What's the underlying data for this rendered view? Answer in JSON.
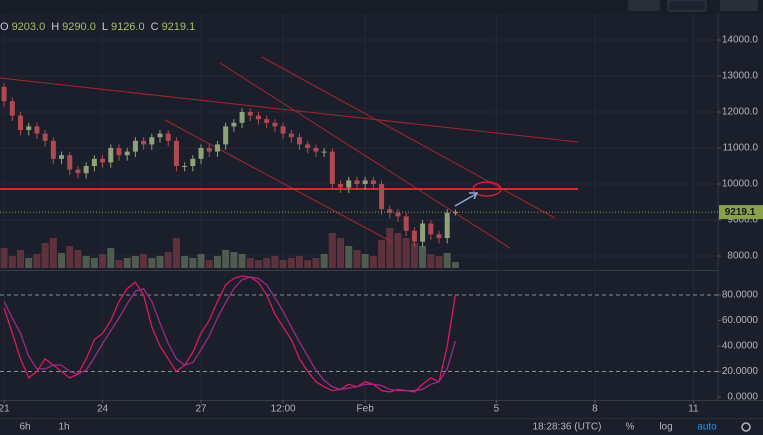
{
  "chart_data": [
    {
      "type": "candlestick",
      "ohlc_legend": [
        {
          "key": "O",
          "value": "9203.0"
        },
        {
          "key": "H",
          "value": "9290.0"
        },
        {
          "key": "L",
          "value": "9126.0"
        },
        {
          "key": "C",
          "value": "9219.1"
        }
      ],
      "open": [
        12700,
        12300,
        11900,
        11500,
        11600,
        11400,
        11200,
        10700,
        10800,
        10400,
        10300,
        10500,
        10700,
        10600,
        11000,
        10800,
        10900,
        11200,
        11100,
        11300,
        11400,
        11200,
        10500,
        10500,
        10700,
        11000,
        10900,
        11100,
        11600,
        11700,
        12000,
        11900,
        11800,
        11700,
        11600,
        11400,
        11300,
        11100,
        11000,
        10900,
        10900,
        10000,
        9900,
        10100,
        10000,
        10100,
        10000,
        9300,
        9200,
        9100,
        8700,
        8400,
        8900,
        8600,
        8500,
        9203.0
      ],
      "high": [
        12800,
        12400,
        12000,
        11700,
        11700,
        11500,
        11300,
        10900,
        10900,
        10500,
        10600,
        10800,
        10800,
        11100,
        11100,
        11000,
        11300,
        11300,
        11400,
        11500,
        11500,
        11300,
        10600,
        10800,
        11100,
        11100,
        11200,
        11700,
        11800,
        12100,
        12100,
        12000,
        11900,
        11800,
        11700,
        11500,
        11400,
        11200,
        11100,
        11000,
        11000,
        10100,
        10200,
        10200,
        10200,
        10200,
        10100,
        9400,
        9300,
        9200,
        8800,
        9000,
        9000,
        8700,
        9300,
        9290.0
      ],
      "low": [
        12150,
        11750,
        11350,
        11350,
        11250,
        11050,
        10550,
        10550,
        10250,
        10150,
        10150,
        10350,
        10450,
        10450,
        10650,
        10650,
        10750,
        10950,
        10950,
        11150,
        11050,
        10350,
        10350,
        10350,
        10550,
        10750,
        10750,
        10950,
        11450,
        11550,
        11750,
        11650,
        11550,
        11450,
        11250,
        11150,
        10950,
        10850,
        10750,
        10750,
        9850,
        9750,
        9750,
        9850,
        9850,
        9850,
        9150,
        9050,
        8950,
        8550,
        8250,
        8250,
        8450,
        8350,
        8350,
        9126.0
      ],
      "close": [
        12300,
        11900,
        11500,
        11600,
        11400,
        11200,
        10700,
        10800,
        10400,
        10300,
        10500,
        10700,
        10600,
        11000,
        10800,
        10900,
        11200,
        11100,
        11300,
        11400,
        11200,
        10500,
        10500,
        10700,
        11000,
        10900,
        11100,
        11600,
        11700,
        12000,
        11900,
        11800,
        11700,
        11600,
        11400,
        11300,
        11100,
        11000,
        10900,
        10900,
        10000,
        9900,
        10100,
        10000,
        10100,
        10000,
        9300,
        9200,
        9100,
        8700,
        8400,
        8900,
        8600,
        8500,
        9203.0,
        9219.1
      ],
      "volume": [
        20,
        12,
        18,
        10,
        14,
        25,
        30,
        15,
        22,
        18,
        12,
        10,
        14,
        20,
        8,
        10,
        12,
        14,
        10,
        12,
        16,
        30,
        12,
        10,
        14,
        8,
        12,
        18,
        16,
        14,
        10,
        8,
        10,
        12,
        8,
        10,
        12,
        8,
        10,
        14,
        35,
        30,
        22,
        18,
        14,
        12,
        28,
        40,
        35,
        30,
        25,
        22,
        14,
        12,
        15,
        6
      ],
      "up_color": "#8fa37a",
      "down_color": "#b04a52",
      "last_price_label": "9219.1",
      "ylim": [
        7600,
        14700
      ],
      "yticks": [
        {
          "value": 8000,
          "label": "8000.0"
        },
        {
          "value": 9000,
          "label": "9000.0"
        },
        {
          "value": 10000,
          "label": "10000.0"
        },
        {
          "value": 11000,
          "label": "11000.0"
        },
        {
          "value": 12000,
          "label": "12000.0"
        },
        {
          "value": 13000,
          "label": "13000.0"
        },
        {
          "value": 14000,
          "label": "14000.0"
        }
      ],
      "xlim": [
        -0.5,
        87
      ],
      "xticks": [
        {
          "value": 0,
          "label": "21"
        },
        {
          "value": 12,
          "label": "24"
        },
        {
          "value": 24,
          "label": "27"
        },
        {
          "value": 34,
          "label": "12:00"
        },
        {
          "value": 44,
          "label": "Feb"
        },
        {
          "value": 60,
          "label": "5"
        },
        {
          "value": 72,
          "label": "8"
        },
        {
          "value": 84,
          "label": "11"
        }
      ],
      "grid": true
    },
    {
      "type": "line",
      "series": [
        {
          "color": "#d81b60",
          "values": [
            70,
            50,
            30,
            15,
            20,
            30,
            25,
            20,
            15,
            18,
            30,
            45,
            50,
            60,
            75,
            85,
            90,
            80,
            55,
            40,
            30,
            20,
            25,
            35,
            50,
            60,
            75,
            88,
            93,
            95,
            94,
            90,
            80,
            65,
            55,
            45,
            30,
            20,
            12,
            8,
            5,
            6,
            10,
            8,
            12,
            10,
            5,
            4,
            6,
            5,
            4,
            10,
            15,
            12,
            40,
            80
          ]
        },
        {
          "color": "#9c2a86",
          "values": [
            75,
            62,
            50,
            32,
            22,
            22,
            25,
            25,
            20,
            18,
            21,
            31,
            42,
            52,
            62,
            73,
            83,
            85,
            75,
            58,
            42,
            30,
            25,
            27,
            37,
            48,
            62,
            74,
            85,
            92,
            94,
            93,
            88,
            78,
            67,
            55,
            43,
            32,
            21,
            13,
            8,
            6,
            7,
            8,
            10,
            10,
            9,
            6,
            5,
            5,
            5,
            6,
            10,
            12,
            22,
            44
          ]
        }
      ],
      "bands": [
        80,
        20
      ],
      "ylim": [
        0,
        100
      ],
      "yticks": [
        {
          "value": 0,
          "label": "0.0000"
        },
        {
          "value": 20,
          "label": "20.0000"
        },
        {
          "value": 40,
          "label": "40.0000"
        },
        {
          "value": 60,
          "label": "60.0000"
        },
        {
          "value": 80,
          "label": "80.0000"
        }
      ]
    }
  ],
  "toolbar": {
    "intervals": [
      "6h",
      "1h"
    ],
    "clock": "18:28:36 (UTC)",
    "percent": "%",
    "log": "log",
    "auto": "auto"
  }
}
